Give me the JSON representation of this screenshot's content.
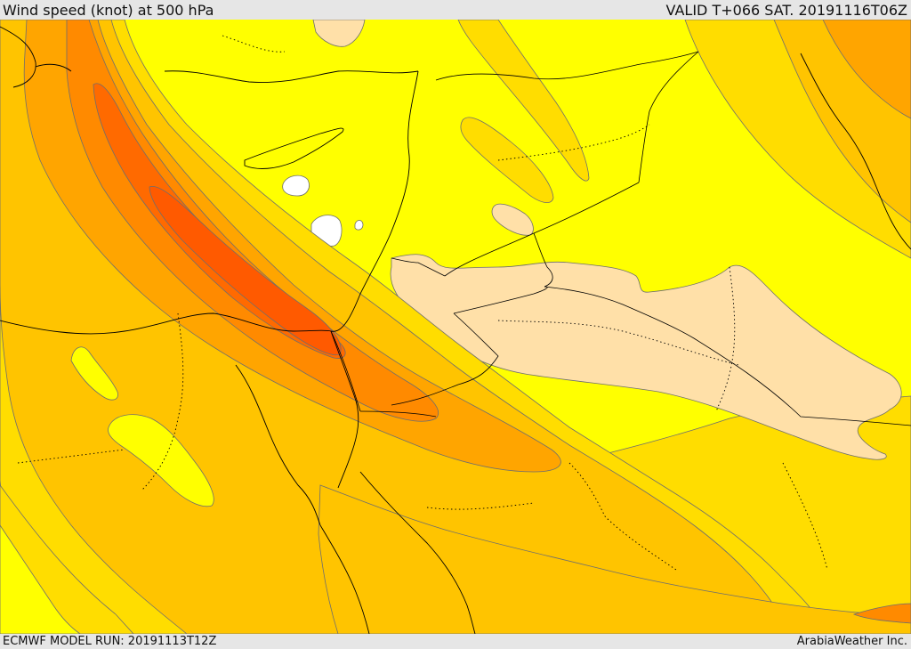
{
  "header": {
    "title": "Wind speed (knot) at 500 hPa",
    "valid": "VALID T+066 SAT. 20191116T06Z"
  },
  "footer": {
    "model_run": "ECMWF MODEL RUN: 20191113T12Z",
    "credit": "ArabiaWeather Inc."
  },
  "palette": {
    "cream": "#ffe0a8",
    "white": "#ffffff",
    "yellow": "#ffff00",
    "gold": "#ffdd00",
    "amber": "#ffc400",
    "orange_light": "#ffa500",
    "orange": "#ff8a00",
    "orange_dark": "#ff6a00",
    "contour": "#6e6e6e",
    "coast": "#000000"
  }
}
